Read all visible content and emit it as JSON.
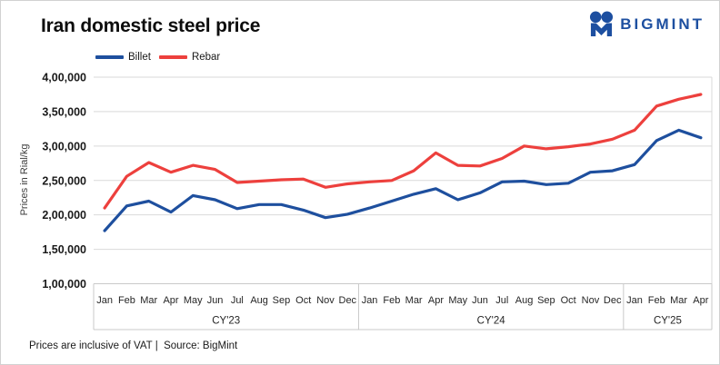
{
  "header": {
    "title": "Iran domestic steel price",
    "brand": {
      "name": "BIGMINT"
    }
  },
  "legend": {
    "items": [
      {
        "label": "Billet",
        "color": "#1e4f9e"
      },
      {
        "label": "Rebar",
        "color": "#ed403d"
      }
    ]
  },
  "footer": {
    "note": "Prices are inclusive of VAT |  Source: BigMint"
  },
  "chart_data": {
    "type": "line",
    "title": "Iran domestic steel price",
    "ylabel": "Prices in Rial/kg",
    "ylim": [
      100000,
      400000
    ],
    "grid": true,
    "legend_position": "top-left",
    "yticks": {
      "values": [
        100000,
        150000,
        200000,
        250000,
        300000,
        350000,
        400000
      ],
      "labels": [
        "1,00,000",
        "1,50,000",
        "2,00,000",
        "2,50,000",
        "3,00,000",
        "3,50,000",
        "4,00,000"
      ]
    },
    "x_groups": [
      {
        "label": "CY'23",
        "months": [
          "Jan",
          "Feb",
          "Mar",
          "Apr",
          "May",
          "Jun",
          "Jul",
          "Aug",
          "Sep",
          "Oct",
          "Nov",
          "Dec"
        ]
      },
      {
        "label": "CY'24",
        "months": [
          "Jan",
          "Feb",
          "Mar",
          "Apr",
          "May",
          "Jun",
          "Jul",
          "Aug",
          "Sep",
          "Oct",
          "Nov",
          "Dec"
        ]
      },
      {
        "label": "CY'25",
        "months": [
          "Jan",
          "Feb",
          "Mar",
          "Apr"
        ]
      }
    ],
    "series": [
      {
        "name": "Billet",
        "color": "#1e4f9e",
        "values": [
          177000,
          213000,
          220000,
          204000,
          228000,
          222000,
          209000,
          215000,
          215000,
          207000,
          196000,
          201000,
          210000,
          220000,
          230000,
          238000,
          222000,
          232000,
          248000,
          249000,
          244000,
          246000,
          262000,
          264000,
          273000,
          308000,
          323000,
          312000
        ]
      },
      {
        "name": "Rebar",
        "color": "#ed403d",
        "values": [
          210000,
          256000,
          276000,
          262000,
          272000,
          266000,
          247000,
          249000,
          251000,
          252000,
          240000,
          245000,
          248000,
          250000,
          264000,
          290000,
          272000,
          271000,
          282000,
          300000,
          296000,
          299000,
          303000,
          310000,
          323000,
          358000,
          368000,
          375000
        ]
      }
    ]
  }
}
